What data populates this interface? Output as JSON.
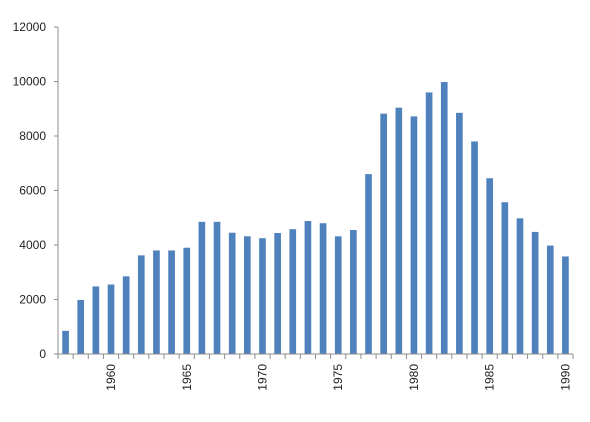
{
  "chart_data": {
    "type": "bar",
    "title": "",
    "xlabel": "",
    "ylabel": "",
    "ylim": [
      0,
      12000
    ],
    "yticks": [
      0,
      2000,
      4000,
      6000,
      8000,
      10000,
      12000
    ],
    "x_tick_labels": [
      1960,
      1965,
      1970,
      1975,
      1980,
      1985,
      1990
    ],
    "grid": false,
    "legend": "none",
    "bar_color": "#4f81bd",
    "categories": [
      1957,
      1958,
      1959,
      1960,
      1961,
      1962,
      1963,
      1964,
      1965,
      1966,
      1967,
      1968,
      1969,
      1970,
      1971,
      1972,
      1973,
      1974,
      1975,
      1976,
      1977,
      1978,
      1979,
      1980,
      1981,
      1982,
      1983,
      1984,
      1985,
      1986,
      1987,
      1988,
      1989,
      1990
    ],
    "values": [
      850,
      1980,
      2480,
      2550,
      2850,
      3620,
      3800,
      3800,
      3900,
      4850,
      4850,
      4450,
      4320,
      4250,
      4440,
      4580,
      4880,
      4800,
      4320,
      4550,
      6600,
      8820,
      9040,
      8720,
      9600,
      9980,
      8850,
      7800,
      6450,
      5570,
      4980,
      4480,
      3980,
      3580
    ]
  }
}
